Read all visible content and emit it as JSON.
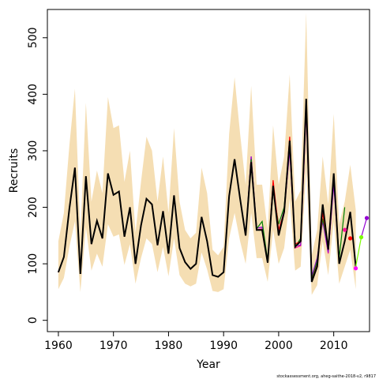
{
  "chart_data": {
    "type": "line",
    "title": "",
    "xlabel": "Year",
    "ylabel": "Recruits",
    "xlim": [
      1958,
      2016.5
    ],
    "ylim": [
      -20,
      550
    ],
    "x_ticks": [
      "1960",
      "1970",
      "1980",
      "1990",
      "2000",
      "2010"
    ],
    "y_ticks": [
      "0",
      "100",
      "200",
      "300",
      "400",
      "500"
    ],
    "grid": false,
    "legend": "none",
    "footnote": "stockassessment.org, aheg-saithe-2018-v2, r9817",
    "colors": {
      "band": "#f5deb3",
      "base": "#000000",
      "retro": [
        "#ff0000",
        "#008000",
        "#9400d3",
        "#ff1493",
        "#8b0000"
      ],
      "points": [
        "#ff1493",
        "#ff0000",
        "#ff00ff",
        "#7cfc00",
        "#9400d3"
      ]
    },
    "years": [
      1960,
      1961,
      1962,
      1963,
      1964,
      1965,
      1966,
      1967,
      1968,
      1969,
      1970,
      1971,
      1972,
      1973,
      1974,
      1975,
      1976,
      1977,
      1978,
      1979,
      1980,
      1981,
      1982,
      1983,
      1984,
      1985,
      1986,
      1987,
      1988,
      1989,
      1990,
      1991,
      1992,
      1993,
      1994,
      1995,
      1996,
      1997,
      1998,
      1999,
      2000,
      2001,
      2002,
      2003,
      2004,
      2005,
      2006,
      2007,
      2008,
      2009,
      2010,
      2011,
      2012,
      2013,
      2014
    ],
    "estimate": [
      85,
      112,
      198,
      270,
      82,
      255,
      135,
      176,
      145,
      260,
      222,
      228,
      148,
      200,
      100,
      168,
      215,
      205,
      133,
      193,
      118,
      221,
      128,
      103,
      91,
      100,
      183,
      140,
      80,
      77,
      85,
      220,
      285,
      215,
      150,
      280,
      160,
      160,
      102,
      238,
      150,
      192,
      318,
      130,
      140,
      392,
      68,
      95,
      205,
      125,
      260,
      100,
      140,
      192,
      95
    ],
    "upper": [
      140,
      190,
      310,
      410,
      150,
      385,
      210,
      265,
      225,
      395,
      340,
      345,
      245,
      300,
      155,
      245,
      325,
      300,
      210,
      290,
      190,
      340,
      210,
      160,
      145,
      155,
      270,
      225,
      125,
      115,
      130,
      330,
      430,
      330,
      240,
      415,
      240,
      240,
      160,
      345,
      240,
      290,
      435,
      210,
      230,
      545,
      115,
      160,
      290,
      205,
      365,
      170,
      210,
      275,
      195
    ],
    "lower": [
      55,
      75,
      130,
      175,
      50,
      165,
      88,
      118,
      95,
      170,
      148,
      152,
      98,
      135,
      65,
      110,
      145,
      135,
      85,
      130,
      78,
      145,
      80,
      65,
      60,
      65,
      120,
      90,
      52,
      50,
      55,
      145,
      190,
      140,
      100,
      190,
      110,
      110,
      68,
      160,
      100,
      128,
      215,
      88,
      95,
      270,
      45,
      62,
      140,
      80,
      175,
      65,
      95,
      125,
      55
    ],
    "retro_series": [
      {
        "values": [
          85,
          112,
          198,
          270,
          82,
          255,
          135,
          176,
          145,
          260,
          222,
          228,
          148,
          200,
          100,
          168,
          215,
          205,
          133,
          193,
          118,
          221,
          128,
          103,
          91,
          100,
          183,
          140,
          80,
          77,
          85,
          220,
          285,
          215,
          150,
          280,
          160,
          160,
          102,
          238,
          150,
          192,
          318,
          130,
          140,
          392,
          68,
          95,
          205,
          125,
          260,
          100,
          140,
          192,
          95
        ],
        "end": 2014
      },
      {
        "values": [
          85,
          112,
          198,
          270,
          82,
          255,
          135,
          176,
          145,
          260,
          222,
          228,
          148,
          200,
          100,
          168,
          215,
          205,
          133,
          193,
          118,
          221,
          128,
          103,
          91,
          100,
          183,
          140,
          80,
          77,
          85,
          220,
          285,
          215,
          150,
          280,
          160,
          160,
          102,
          248,
          160,
          192,
          325,
          135,
          140,
          388,
          70,
          98,
          190,
          128,
          258,
          102,
          138,
          190
        ],
        "end": 2013
      },
      {
        "values": [
          85,
          112,
          198,
          270,
          82,
          255,
          135,
          176,
          145,
          260,
          222,
          228,
          148,
          200,
          100,
          168,
          215,
          205,
          133,
          193,
          118,
          221,
          128,
          103,
          91,
          100,
          183,
          140,
          80,
          77,
          85,
          220,
          285,
          215,
          150,
          285,
          162,
          175,
          105,
          230,
          170,
          200,
          315,
          130,
          145,
          380,
          72,
          105,
          180,
          130,
          255,
          110,
          200
        ],
        "end": 2012
      },
      {
        "values": [
          85,
          112,
          198,
          270,
          82,
          255,
          135,
          176,
          145,
          260,
          222,
          228,
          148,
          200,
          100,
          168,
          215,
          205,
          133,
          193,
          118,
          221,
          128,
          103,
          91,
          100,
          183,
          140,
          80,
          77,
          85,
          220,
          285,
          215,
          150,
          290,
          163,
          165,
          104,
          232,
          158,
          195,
          300,
          132,
          133,
          375,
          78,
          110,
          175,
          120,
          240,
          105
        ],
        "end": 2011
      },
      {
        "values": [
          85,
          112,
          198,
          270,
          82,
          255,
          135,
          176,
          145,
          260,
          222,
          228,
          148,
          200,
          100,
          168,
          215,
          205,
          133,
          193,
          118,
          221,
          128,
          103,
          91,
          100,
          183,
          140,
          80,
          77,
          85,
          220,
          285,
          215,
          150,
          288,
          160,
          162,
          103,
          235,
          152,
          190,
          305,
          128,
          132,
          370,
          76,
          100,
          180,
          118,
          245
        ],
        "end": 2010
      }
    ],
    "terminal_points": [
      {
        "year": 2012,
        "value": 160
      },
      {
        "year": 2013,
        "value": 145
      },
      {
        "year": 2014,
        "value": 92
      },
      {
        "year": 2015,
        "value": 147
      },
      {
        "year": 2016,
        "value": 181
      }
    ],
    "tail_segments": [
      {
        "from": [
          2014,
          95
        ],
        "to": [
          2015,
          147
        ]
      },
      {
        "from": [
          2015,
          147
        ],
        "to": [
          2016,
          181
        ]
      }
    ]
  }
}
